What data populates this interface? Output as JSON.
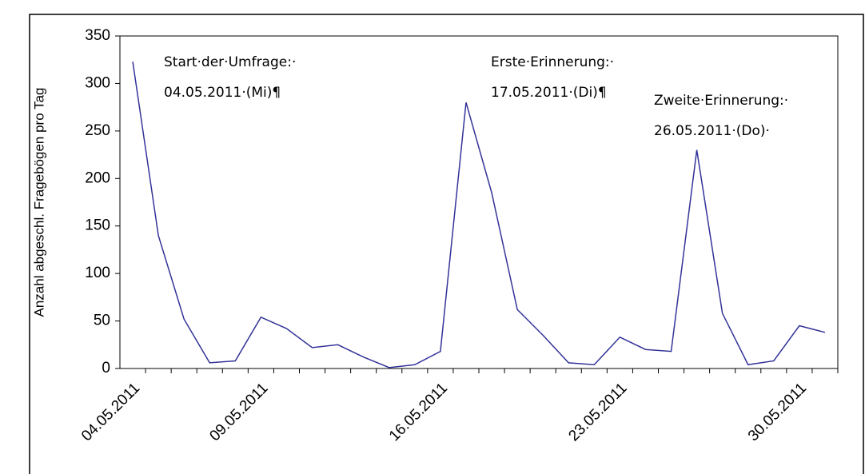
{
  "chart_data": {
    "type": "line",
    "y_label": "Anzahl abgeschl. Fragebögen pro Tag",
    "categories": [
      "04.05.2011",
      null,
      null,
      null,
      null,
      "09.05.2011",
      null,
      null,
      null,
      null,
      null,
      null,
      "16.05.2011",
      null,
      null,
      null,
      null,
      null,
      null,
      "23.05.2011",
      null,
      null,
      null,
      null,
      null,
      null,
      "30.05.2011",
      null
    ],
    "series": [
      {
        "name": "Fragebögen",
        "color": "#333399",
        "values": [
          323,
          140,
          52,
          6,
          8,
          54,
          42,
          22,
          25,
          12,
          1,
          4,
          18,
          280,
          185,
          62,
          35,
          6,
          4,
          33,
          20,
          18,
          230,
          58,
          4,
          8,
          45,
          38
        ]
      }
    ],
    "ylim": [
      0,
      350
    ],
    "yticks": [
      0,
      50,
      100,
      150,
      200,
      250,
      300,
      350
    ],
    "annotations": [
      {
        "lines": [
          "Start·der·Umfrage:·",
          "04.05.2011·(Mi)¶"
        ]
      },
      {
        "lines": [
          "Erste·Erinnerung:·",
          "17.05.2011·(Di)¶"
        ]
      },
      {
        "lines": [
          "Zweite·Erinnerung:·",
          "26.05.2011·(Do)·"
        ]
      }
    ]
  }
}
